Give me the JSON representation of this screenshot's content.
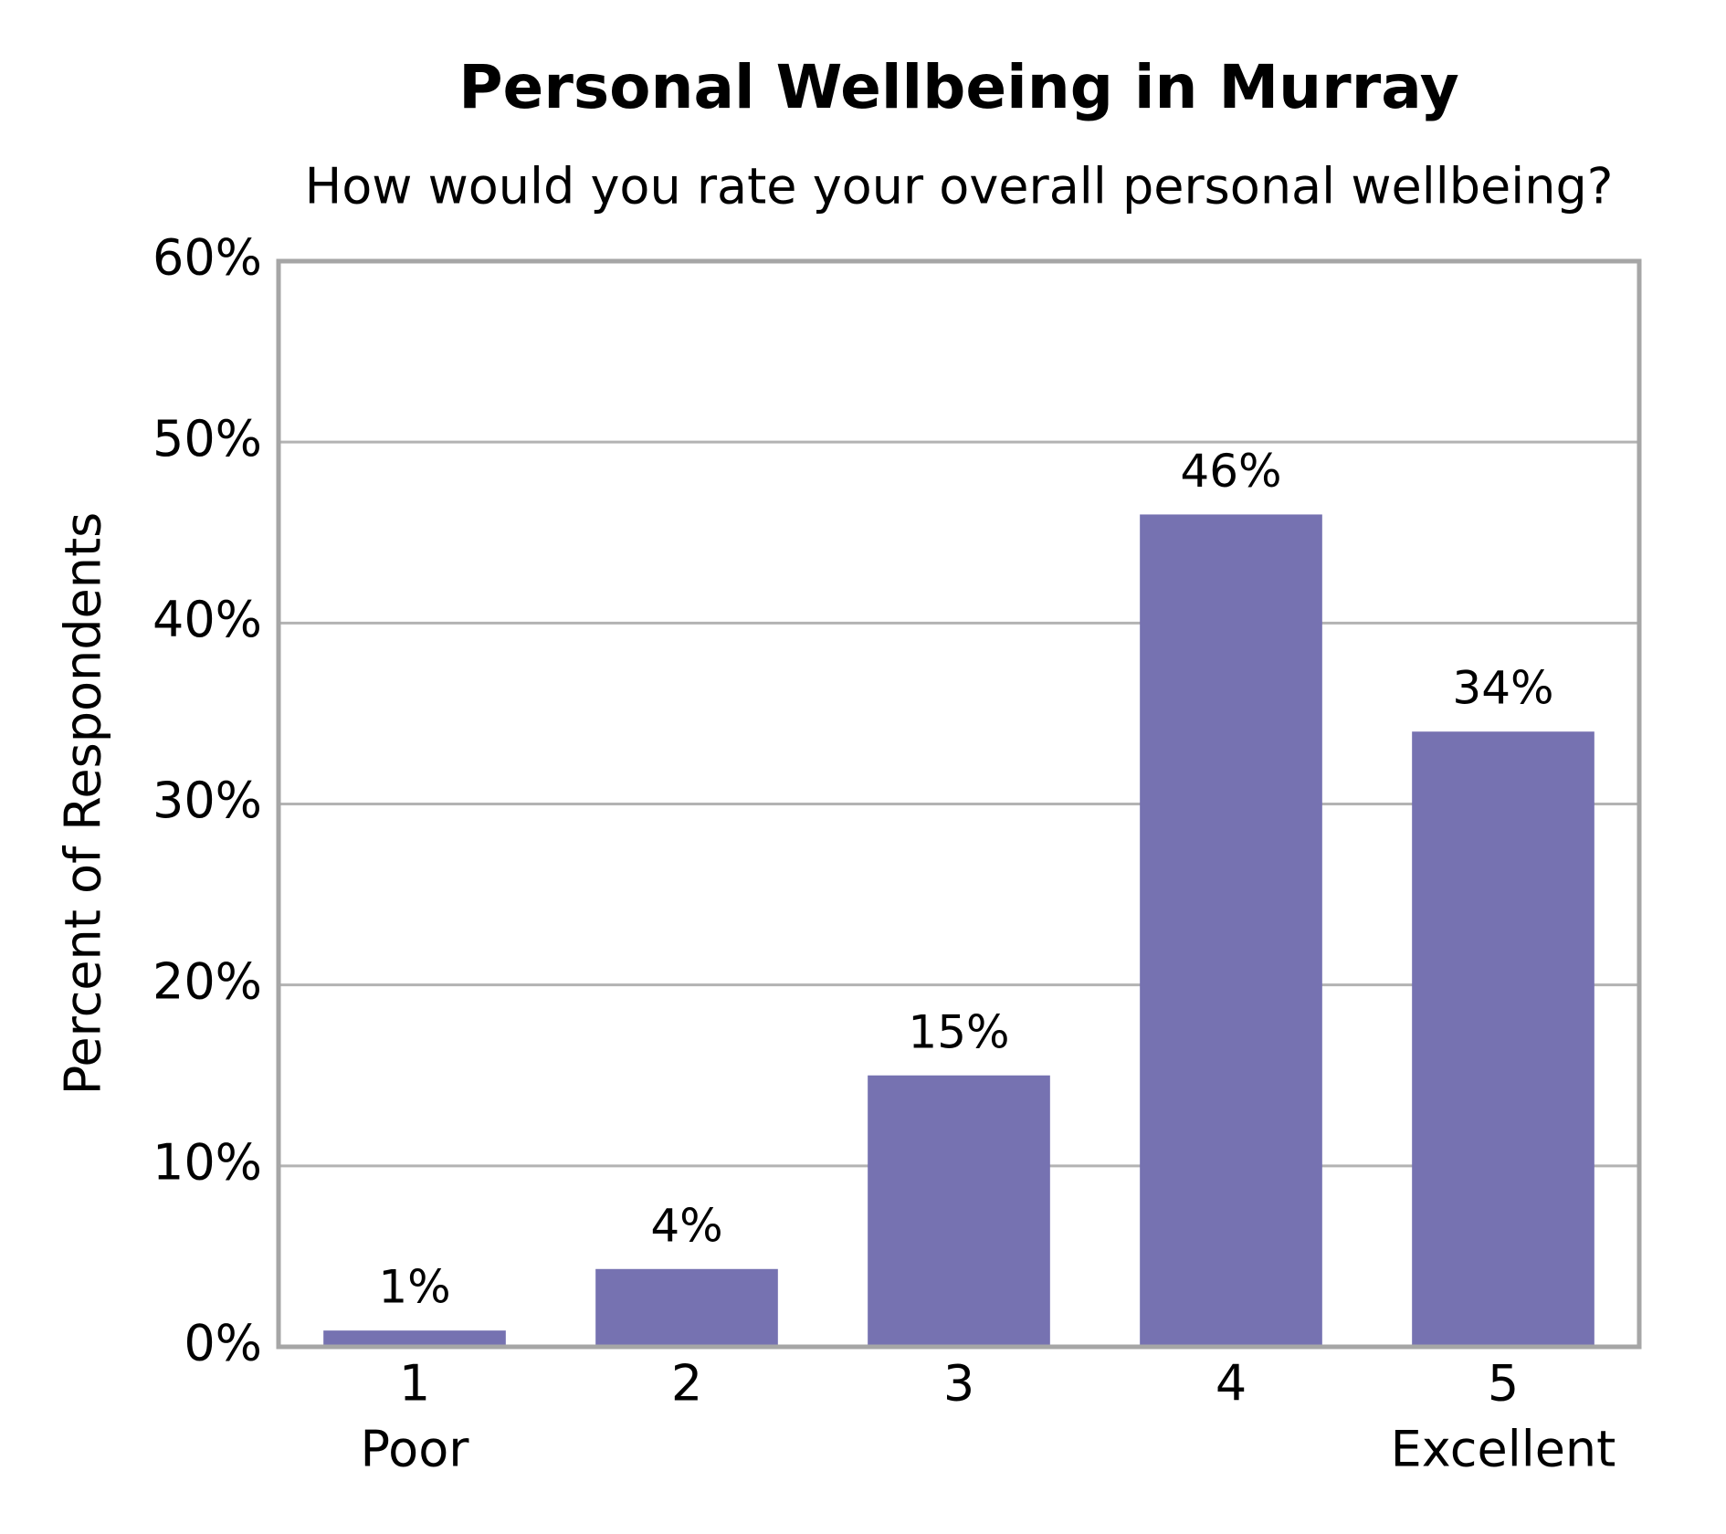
{
  "chart_data": {
    "type": "bar",
    "title": "Personal Wellbeing in Murray",
    "subtitle": "How would you rate your overall personal wellbeing?",
    "y_label": "Percent of Respondents",
    "categories": [
      "1",
      "2",
      "3",
      "4",
      "5"
    ],
    "category_sublabels": [
      "Poor",
      null,
      null,
      null,
      "Excellent"
    ],
    "values": [
      0.9,
      4.3,
      15,
      46,
      34
    ],
    "value_labels": [
      "1%",
      "4%",
      "15%",
      "46%",
      "34%"
    ],
    "color": "#7672b1",
    "ylim": [
      0,
      60
    ],
    "yticks": [
      {
        "value": 0,
        "label": "0%"
      },
      {
        "value": 10,
        "label": "10%"
      },
      {
        "value": 20,
        "label": "20%"
      },
      {
        "value": 30,
        "label": "30%"
      },
      {
        "value": 40,
        "label": "40%"
      },
      {
        "value": 50,
        "label": "50%"
      },
      {
        "value": 60,
        "label": "60%"
      }
    ],
    "grid": true
  }
}
